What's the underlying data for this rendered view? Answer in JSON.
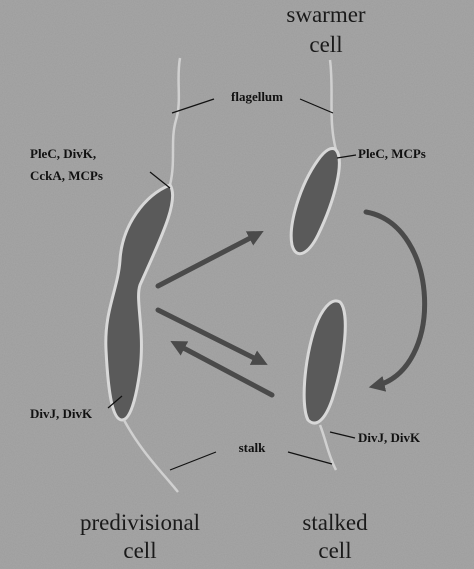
{
  "labels": {
    "swarmer_cell": [
      "swarmer",
      "cell"
    ],
    "flagellum": "flagellum",
    "left_pole": [
      "PleC, DivK,",
      "CckA, MCPs"
    ],
    "swarmer_pole": "PleC, MCPs",
    "left_stalk_pole": "DivJ, DivK",
    "stalk": "stalk",
    "stalked_pole": "DivJ, DivK",
    "predivisional_cell": [
      "predivisional",
      "cell"
    ],
    "stalked_cell": [
      "stalked",
      "cell"
    ]
  }
}
